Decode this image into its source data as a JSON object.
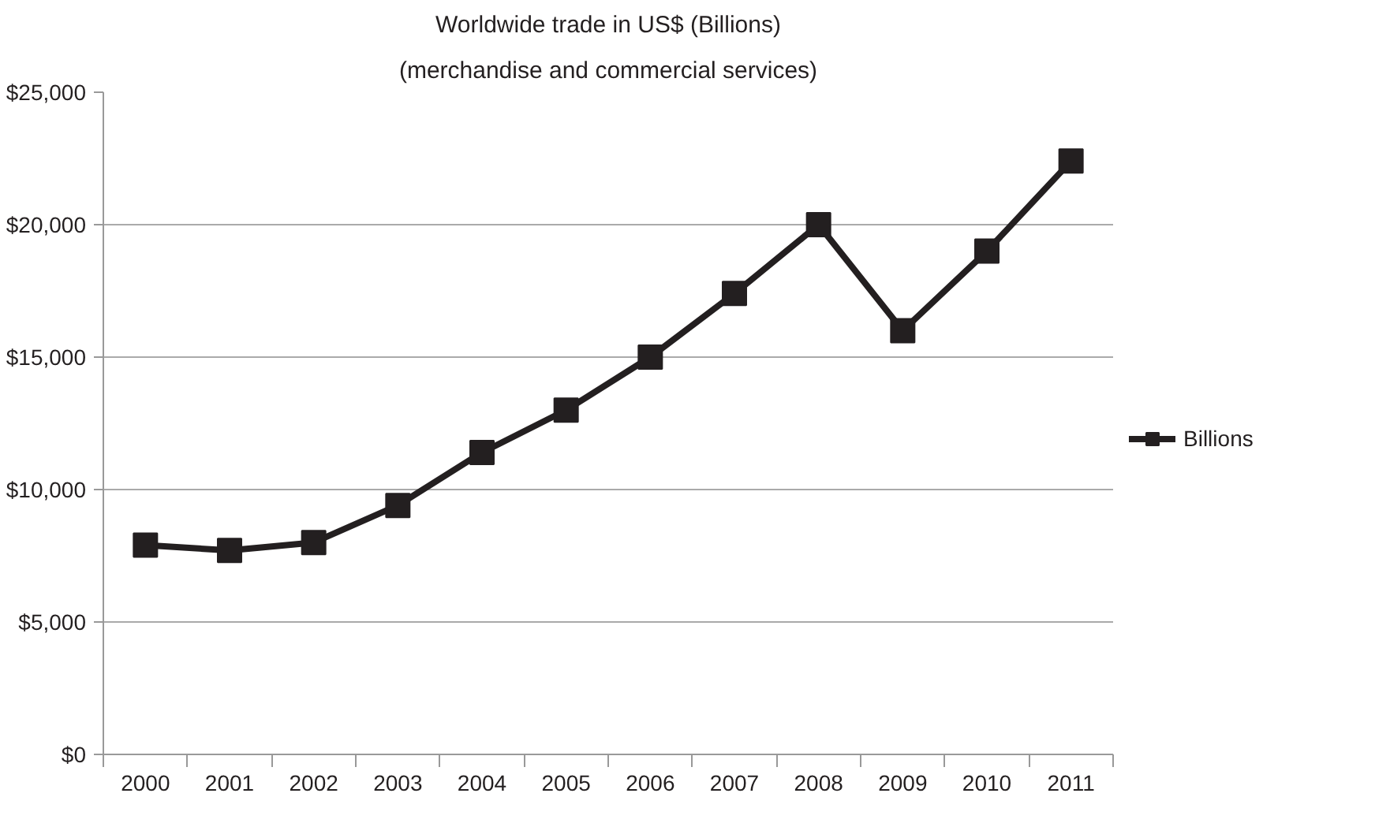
{
  "chart_data": {
    "type": "line",
    "title": "Worldwide trade in US$ (Billions)",
    "subtitle": "(merchandise and commercial services)",
    "categories": [
      "2000",
      "2001",
      "2002",
      "2003",
      "2004",
      "2005",
      "2006",
      "2007",
      "2008",
      "2009",
      "2010",
      "2011"
    ],
    "series": [
      {
        "name": "Billions",
        "color": "#231f20",
        "values": [
          7900,
          7700,
          8000,
          9400,
          11400,
          13000,
          15000,
          17400,
          20000,
          16000,
          19000,
          22400
        ]
      }
    ],
    "ylim": [
      0,
      25000
    ],
    "yticks": [
      {
        "value": 0,
        "label": "$0"
      },
      {
        "value": 5000,
        "label": "$5,000"
      },
      {
        "value": 10000,
        "label": "$10,000"
      },
      {
        "value": 15000,
        "label": "$15,000"
      },
      {
        "value": 20000,
        "label": "$20,000"
      },
      {
        "value": 25000,
        "label": "$25,000"
      }
    ],
    "grid": "y",
    "legend": "right",
    "marker": "square",
    "line_style": "solid"
  }
}
